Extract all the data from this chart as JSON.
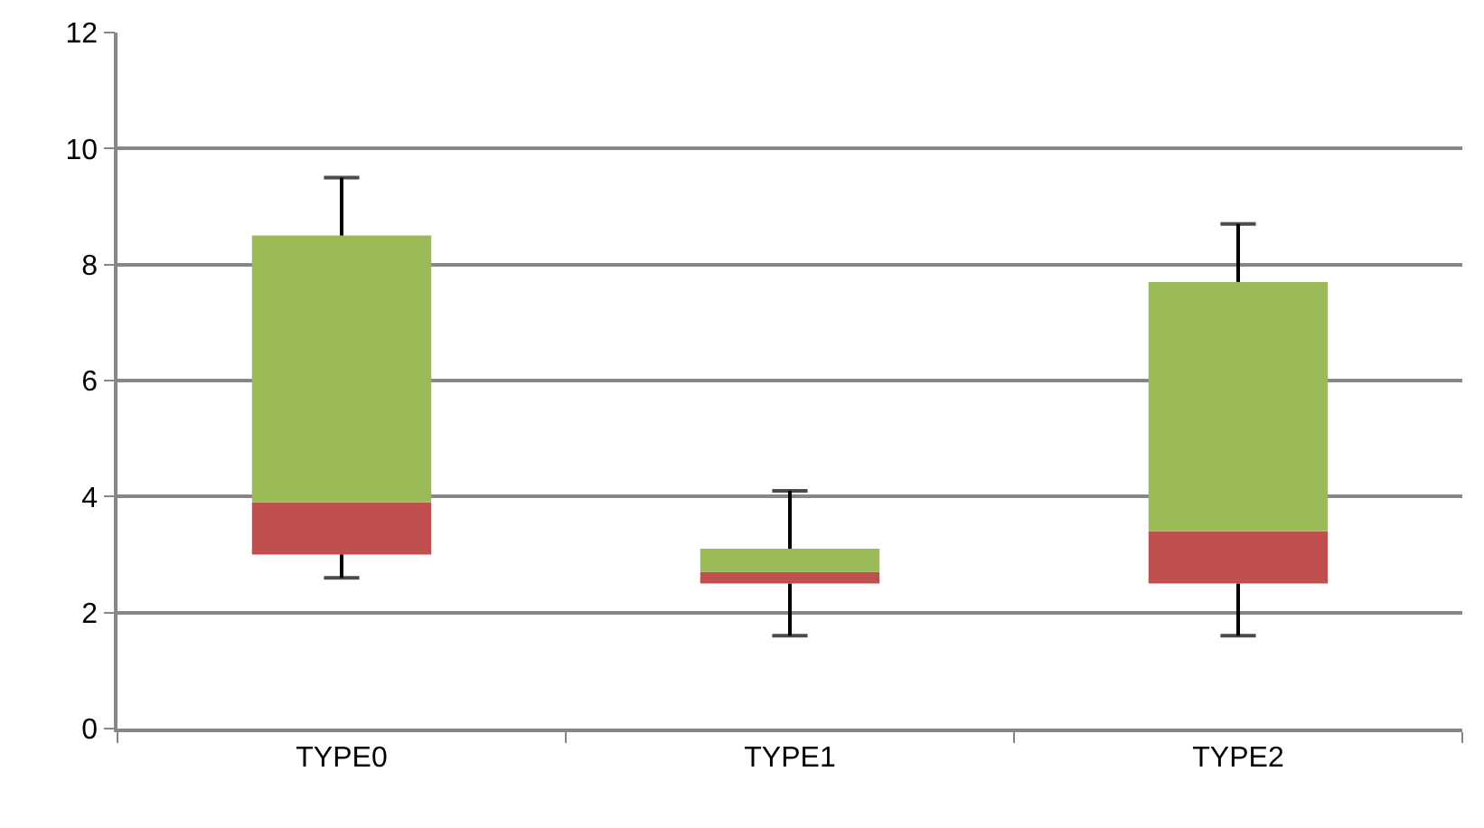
{
  "chart_data": {
    "type": "box",
    "categories": [
      "TYPE0",
      "TYPE1",
      "TYPE2"
    ],
    "series": [
      {
        "color": "#9bbb59",
        "colors": [
          "#c0504d",
          "#c0504d",
          "#c0504d"
        ],
        "boxes": [
          {
            "low": 2.6,
            "q1": 3.0,
            "median": 3.9,
            "q3": 8.5,
            "high": 9.5
          },
          {
            "low": 1.6,
            "q1": 2.5,
            "median": 2.7,
            "q3": 3.1,
            "high": 4.1
          },
          {
            "low": 1.6,
            "q1": 2.5,
            "median": 3.4,
            "q3": 7.7,
            "high": 8.7
          }
        ]
      }
    ],
    "ylim": [
      0,
      12
    ],
    "yticks": [
      0,
      2,
      4,
      6,
      8,
      10,
      12
    ],
    "grid": "y"
  }
}
